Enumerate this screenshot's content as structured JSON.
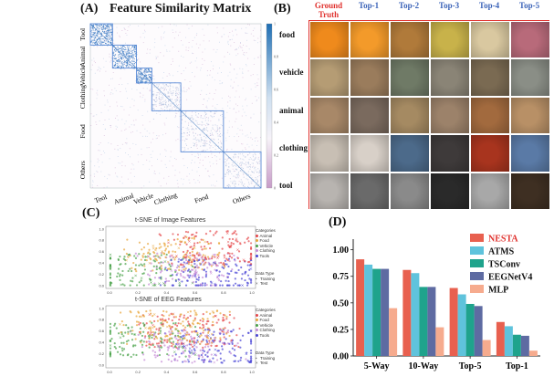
{
  "panel_a": {
    "letter": "(A)",
    "title": "Feature Similarity Matrix",
    "y_labels": [
      "Tool",
      "Animal",
      "Vehicle",
      "Clothing",
      "Food",
      "Others"
    ],
    "x_labels": [
      "Tool",
      "Animal",
      "Vehicle",
      "Clothing",
      "Food",
      "Others"
    ],
    "colorbar_ticks": [
      "1",
      "0.8",
      "0.6",
      "0.4",
      "0.2",
      "0"
    ],
    "colors": {
      "high": "#1f6fb4",
      "mid": "#f6f2f8",
      "low": "#c79cc8",
      "block": "#5b8bd6"
    }
  },
  "panel_b": {
    "letter": "(B)",
    "columns": [
      "Ground Truth",
      "Top-1",
      "Top-2",
      "Top-3",
      "Top-4",
      "Top-5"
    ],
    "rows": [
      "food",
      "vehicle",
      "animal",
      "clothing",
      "tool"
    ],
    "thumbnails": [
      [
        "orange",
        "orange-slice",
        "mixed-fruit",
        "pear",
        "garlic",
        "onion"
      ],
      [
        "scooter",
        "unicycle",
        "bicycle",
        "bicycle-rack",
        "cart",
        "jeep"
      ],
      [
        "cat",
        "opossum",
        "squirrel",
        "cat-2",
        "pheasant",
        "deer"
      ],
      [
        "shirt",
        "hoodie",
        "shirt-2",
        "suit",
        "sweater",
        "jeans"
      ],
      [
        "spoon",
        "ladle",
        "spatula",
        "tool-dark",
        "fork",
        "bottle-opener"
      ]
    ],
    "thumbnail_colors": [
      [
        "#ef8a1c",
        "#f39a2a",
        "#b07a3a",
        "#c8b24a",
        "#d9c8a0",
        "#b86a7a"
      ],
      [
        "#b59c74",
        "#9a7c5c",
        "#6f7a66",
        "#8a8476",
        "#7a6a52",
        "#8a8e86"
      ],
      [
        "#a88868",
        "#7a6a5e",
        "#a58a62",
        "#9c826a",
        "#a26a3e",
        "#b89066"
      ],
      [
        "#c8bfb4",
        "#d8d0c8",
        "#4c6a8a",
        "#3e3a3a",
        "#a8341e",
        "#5a7aa6"
      ],
      [
        "#b8b4b0",
        "#6a6a6a",
        "#8a8a8a",
        "#2a2a2a",
        "#a8a8a8",
        "#3e2f22"
      ]
    ]
  },
  "panel_c": {
    "letter": "(C)",
    "plots": [
      {
        "title": "t-SNE of Image Features",
        "legend_categories_title": "Categories",
        "categories": [
          "Animal",
          "Food",
          "Vehicle",
          "Clothing",
          "Tools"
        ],
        "legend_type_title": "Data Type",
        "types": [
          "Training",
          "Test"
        ]
      },
      {
        "title": "t-SNE of EEG Features",
        "legend_categories_title": "Categories",
        "categories": [
          "Animal",
          "Food",
          "Vehicle",
          "Clothing",
          "Tools"
        ],
        "legend_type_title": "Data Type",
        "types": [
          "Training",
          "Test"
        ]
      }
    ],
    "y_ticks": [
      "1.0",
      "0.8",
      "0.6",
      "0.4",
      "0.2",
      "0.0"
    ],
    "x_ticks": [
      "0.0",
      "0.2",
      "0.4",
      "0.6",
      "0.8",
      "1.0"
    ],
    "category_colors": {
      "Animal": "#e5474a",
      "Food": "#e8a53a",
      "Vehicle": "#4aa24a",
      "Clothing": "#c58ad6",
      "Tools": "#4a46d6"
    }
  },
  "panel_d": {
    "letter": "(D)"
  },
  "chart_data": {
    "type": "bar",
    "categories": [
      "5-Way",
      "10-Way",
      "Top-5",
      "Top-1"
    ],
    "series": [
      {
        "name": "NESTA",
        "values": [
          0.91,
          0.81,
          0.64,
          0.32
        ],
        "color": "#e8604f"
      },
      {
        "name": "ATMS",
        "values": [
          0.86,
          0.78,
          0.58,
          0.28
        ],
        "color": "#5fc3dc"
      },
      {
        "name": "TSConv",
        "values": [
          0.82,
          0.65,
          0.49,
          0.2
        ],
        "color": "#1fa38c"
      },
      {
        "name": "EEGNetV4",
        "values": [
          0.82,
          0.65,
          0.47,
          0.19
        ],
        "color": "#5e6ba2"
      },
      {
        "name": "MLP",
        "values": [
          0.45,
          0.27,
          0.15,
          0.05
        ],
        "color": "#f6ab8e"
      }
    ],
    "yticks": [
      "0.00",
      "0.25",
      "0.50",
      "0.75",
      "1.00"
    ],
    "ylim": [
      0,
      1.1
    ],
    "grid": false,
    "legend_position": "top-right"
  }
}
